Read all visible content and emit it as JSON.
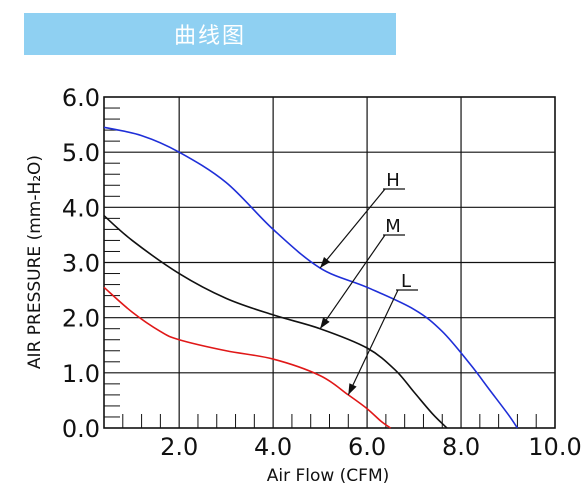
{
  "banner": {
    "title": "曲线图",
    "color": "#8fd0f2"
  },
  "chart_data": {
    "type": "line",
    "xlabel": "Air Flow (CFM)",
    "ylabel": "AIR PRESSURE (mm-H₂O)",
    "xlim": [
      0.4,
      10.0
    ],
    "ylim": [
      0.0,
      6.0
    ],
    "x_tick_labels": [
      "2.0",
      "4.0",
      "6.0",
      "8.0",
      "10.0"
    ],
    "x_tick_values": [
      2.0,
      4.0,
      6.0,
      8.0,
      10.0
    ],
    "y_tick_labels": [
      "0.0",
      "1.0",
      "2.0",
      "3.0",
      "4.0",
      "5.0",
      "6.0"
    ],
    "y_tick_values": [
      0,
      1,
      2,
      3,
      4,
      5,
      6
    ],
    "grid": true,
    "series": [
      {
        "name": "H",
        "color": "#1f2fd8",
        "x": [
          0.4,
          1.2,
          2.0,
          3.0,
          4.0,
          5.0,
          6.0,
          7.0,
          7.6,
          8.2,
          8.6,
          9.0,
          9.2
        ],
        "y": [
          5.45,
          5.3,
          5.0,
          4.45,
          3.6,
          2.9,
          2.55,
          2.15,
          1.75,
          1.15,
          0.7,
          0.25,
          0.0
        ]
      },
      {
        "name": "M",
        "color": "#111111",
        "x": [
          0.4,
          1.0,
          2.0,
          3.0,
          4.0,
          5.0,
          6.0,
          6.6,
          7.0,
          7.4,
          7.7
        ],
        "y": [
          3.85,
          3.4,
          2.8,
          2.35,
          2.05,
          1.8,
          1.45,
          1.05,
          0.65,
          0.25,
          0.0
        ]
      },
      {
        "name": "L",
        "color": "#e01818",
        "x": [
          0.4,
          1.0,
          1.6,
          2.0,
          3.0,
          4.0,
          5.0,
          5.6,
          6.0,
          6.3,
          6.5
        ],
        "y": [
          2.55,
          2.1,
          1.75,
          1.6,
          1.4,
          1.25,
          0.95,
          0.6,
          0.35,
          0.12,
          0.0
        ]
      }
    ],
    "annotations": [
      {
        "text": "H",
        "series": "H",
        "target_x": 5.0,
        "target_y": 2.9
      },
      {
        "text": "M",
        "series": "M",
        "target_x": 5.0,
        "target_y": 1.8
      },
      {
        "text": "L",
        "series": "L",
        "target_x": 5.6,
        "target_y": 0.6
      }
    ]
  }
}
